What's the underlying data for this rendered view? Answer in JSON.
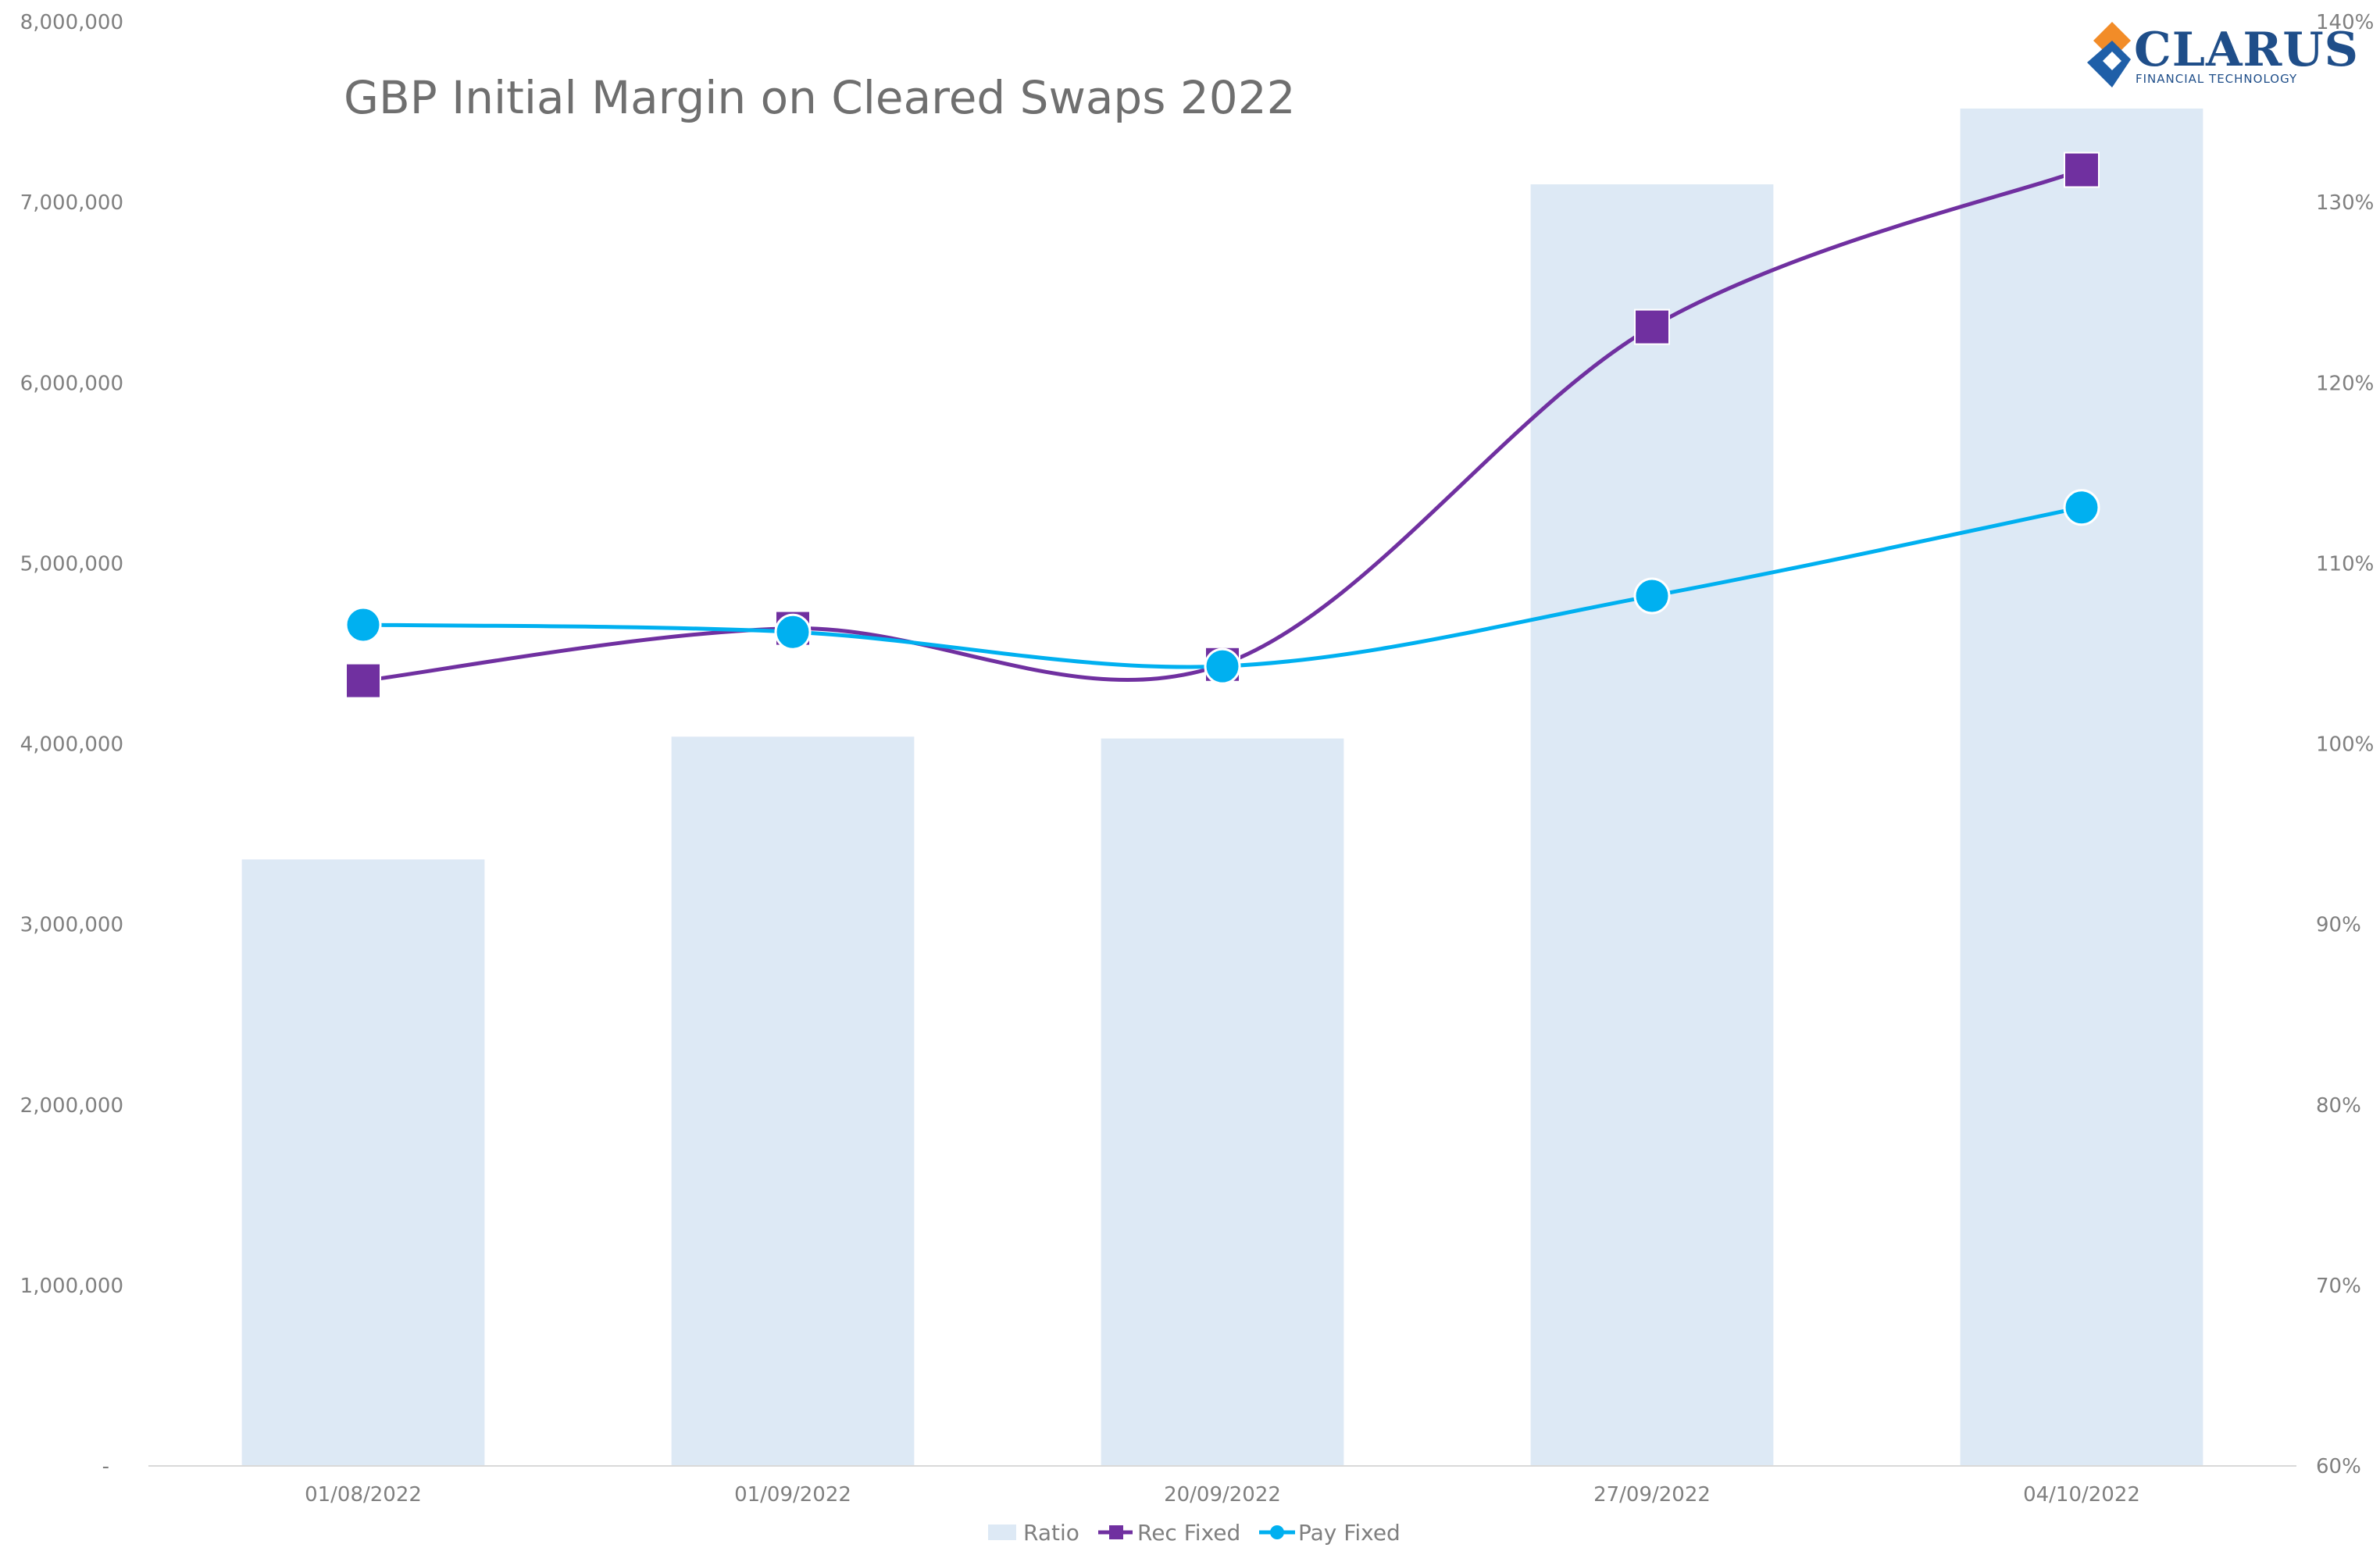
{
  "logo": {
    "word": "CLARUS",
    "subtitle": "FINANCIAL TECHNOLOGY"
  },
  "colors": {
    "ratio": "#dde9f5",
    "rec": "#7030a0",
    "pay": "#00b0f0",
    "axis_text": "#7f7f7f",
    "axis_line": "#d9d9d9",
    "title": "#6f6f6f"
  },
  "chart_data": {
    "type": "bar",
    "title": "GBP Initial Margin on Cleared Swaps 2022",
    "categories": [
      "01/08/2022",
      "01/09/2022",
      "20/09/2022",
      "27/09/2022",
      "04/10/2022"
    ],
    "y_left": {
      "lim": [
        0,
        8000000
      ],
      "ticks": [
        0,
        1000000,
        2000000,
        3000000,
        4000000,
        5000000,
        6000000,
        7000000,
        8000000
      ],
      "tick_labels": [
        "-",
        "1,000,000",
        "2,000,000",
        "3,000,000",
        "4,000,000",
        "5,000,000",
        "6,000,000",
        "7,000,000",
        "8,000,000"
      ]
    },
    "y_right": {
      "lim": [
        0.6,
        1.4
      ],
      "ticks": [
        0.6,
        0.7,
        0.8,
        0.9,
        1.0,
        1.1,
        1.2,
        1.3,
        1.4
      ],
      "tick_labels": [
        "60%",
        "70%",
        "80%",
        "90%",
        "100%",
        "110%",
        "120%",
        "130%",
        "140%"
      ]
    },
    "series": [
      {
        "name": "Ratio",
        "type": "bar",
        "axis": "right",
        "values": [
          0.936,
          1.004,
          1.003,
          1.31,
          1.352
        ]
      },
      {
        "name": "Rec Fixed",
        "type": "line",
        "axis": "left",
        "marker": "square",
        "values": [
          4350000,
          4640000,
          4440000,
          6310000,
          7180000
        ]
      },
      {
        "name": "Pay Fixed",
        "type": "line",
        "axis": "left",
        "marker": "circle",
        "values": [
          4660000,
          4620000,
          4430000,
          4820000,
          5310000
        ]
      }
    ],
    "legend": {
      "position": "bottom",
      "entries": [
        "Ratio",
        "Rec Fixed",
        "Pay Fixed"
      ]
    },
    "grid": false
  }
}
